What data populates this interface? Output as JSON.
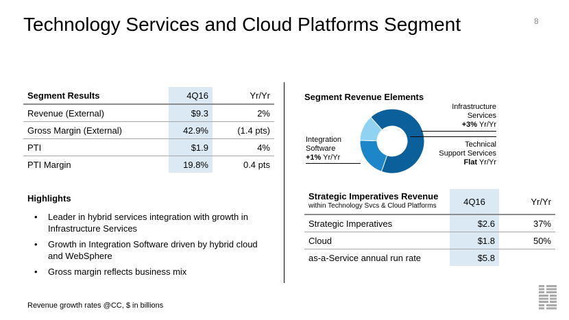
{
  "header": {
    "title": "Technology Services and Cloud Platforms Segment",
    "page_number": "8"
  },
  "segment_results": {
    "headers": [
      "Segment Results",
      "4Q16",
      "Yr/Yr"
    ],
    "rows": [
      [
        "Revenue (External)",
        "$9.3",
        "2%"
      ],
      [
        "Gross Margin (External)",
        "42.9%",
        "(1.4 pts)"
      ],
      [
        "PTI",
        "$1.9",
        "4%"
      ],
      [
        "PTI Margin",
        "19.8%",
        "0.4 pts"
      ]
    ]
  },
  "highlights": {
    "title": "Highlights",
    "items": [
      "Leader in hybrid services integration with growth in Infrastructure Services",
      "Growth in Integration Software driven by hybrid cloud and WebSphere",
      "Gross margin reflects business mix"
    ]
  },
  "footnote": "Revenue growth rates @CC, $ in billions",
  "chart_data": {
    "type": "pie",
    "title": "Segment Revenue Elements",
    "slices": [
      {
        "name": "Infrastructure Services",
        "growth": "+3% Yr/Yr",
        "value": 0.67,
        "color": "#0b5f9b"
      },
      {
        "name": "Technical Support Services",
        "growth": "Flat Yr/Yr",
        "value": 0.2,
        "color": "#1c86c8"
      },
      {
        "name": "Integration Software",
        "growth": "+1% Yr/Yr",
        "value": 0.13,
        "color": "#8fd2f2"
      }
    ],
    "labels": {
      "infra": {
        "line1": "Infrastructure",
        "line2": "Services",
        "growth_bold": "+3%",
        "growth_rest": " Yr/Yr"
      },
      "tech": {
        "line1": "Technical",
        "line2": "Support Services",
        "growth_bold": "Flat",
        "growth_rest": " Yr/Yr"
      },
      "int": {
        "line1": "Integration",
        "line2": "Software",
        "growth_bold": "+1%",
        "growth_rest": " Yr/Yr"
      }
    }
  },
  "strategic_imperatives": {
    "title": "Strategic Imperatives Revenue",
    "subtitle": "within Technology Svcs & Cloud Platforms",
    "col2": "4Q16",
    "col3": "Yr/Yr",
    "rows": [
      [
        "Strategic Imperatives",
        "$2.6",
        "37%"
      ],
      [
        "Cloud",
        "$1.8",
        "50%"
      ],
      [
        "as-a-Service annual run rate",
        "$5.8",
        ""
      ]
    ]
  },
  "logo": {
    "text": "IBM",
    "color": "#aaaaaa"
  }
}
